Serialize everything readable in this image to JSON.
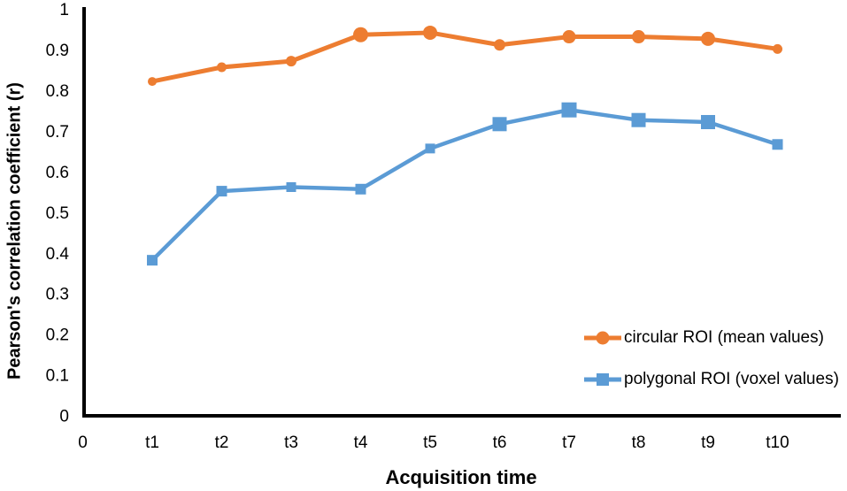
{
  "chart_data": {
    "type": "line",
    "title": "",
    "xlabel": "Acquisition time",
    "ylabel": "Pearson's correlation coefficient (r)",
    "x_tick_labels": [
      "0",
      "t1",
      "t2",
      "t3",
      "t4",
      "t5",
      "t6",
      "t7",
      "t8",
      "t9",
      "t10"
    ],
    "y_ticks": [
      {
        "label": "0",
        "value": 0
      },
      {
        "label": "0.1",
        "value": 0.1
      },
      {
        "label": "0.2",
        "value": 0.2
      },
      {
        "label": "0.3",
        "value": 0.3
      },
      {
        "label": "0.4",
        "value": 0.4
      },
      {
        "label": "0.5",
        "value": 0.5
      },
      {
        "label": "0.6",
        "value": 0.6
      },
      {
        "label": "0.7",
        "value": 0.7
      },
      {
        "label": "0.8",
        "value": 0.8
      },
      {
        "label": "0.9",
        "value": 0.9
      },
      {
        "label": "1",
        "value": 1
      }
    ],
    "ylim": [
      0,
      1
    ],
    "grid": false,
    "legend_position": "inside-right",
    "axis_color": "#000000",
    "categories": [
      "t1",
      "t2",
      "t3",
      "t4",
      "t5",
      "t6",
      "t7",
      "t8",
      "t9",
      "t10"
    ],
    "series": [
      {
        "name": "circular ROI (mean values)",
        "color": "#ED7D31",
        "marker": "circle",
        "line_width": 5,
        "values": [
          0.825,
          0.86,
          0.875,
          0.94,
          0.945,
          0.915,
          0.935,
          0.935,
          0.93,
          0.905
        ],
        "marker_sizes": [
          10,
          11,
          12,
          17,
          16,
          13,
          15,
          15,
          16,
          11
        ]
      },
      {
        "name": "polygonal ROI (voxel values)",
        "color": "#5B9BD5",
        "marker": "square",
        "line_width": 4.5,
        "values": [
          0.385,
          0.555,
          0.565,
          0.56,
          0.66,
          0.72,
          0.755,
          0.73,
          0.725,
          0.67
        ],
        "marker_sizes": [
          12,
          12,
          11,
          12,
          11,
          16,
          17,
          16,
          16,
          12
        ]
      }
    ]
  }
}
